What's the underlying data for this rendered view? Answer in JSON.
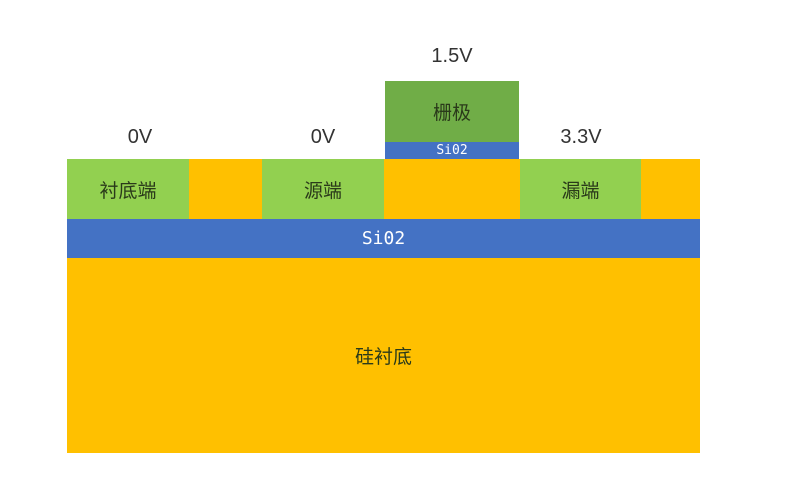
{
  "colors": {
    "terminal": "#92d050",
    "gate": "#70ad47",
    "oxide": "#4472c4",
    "silicon": "#ffc000"
  },
  "voltages": {
    "body": "0V",
    "source": "0V",
    "gate": "1.5V",
    "drain": "3.3V"
  },
  "regions": {
    "body": "衬底端",
    "source": "源端",
    "gate": "栅极",
    "drain": "漏端",
    "gate_oxide": "Si02",
    "buried_oxide": "Si02",
    "substrate": "硅衬底"
  }
}
